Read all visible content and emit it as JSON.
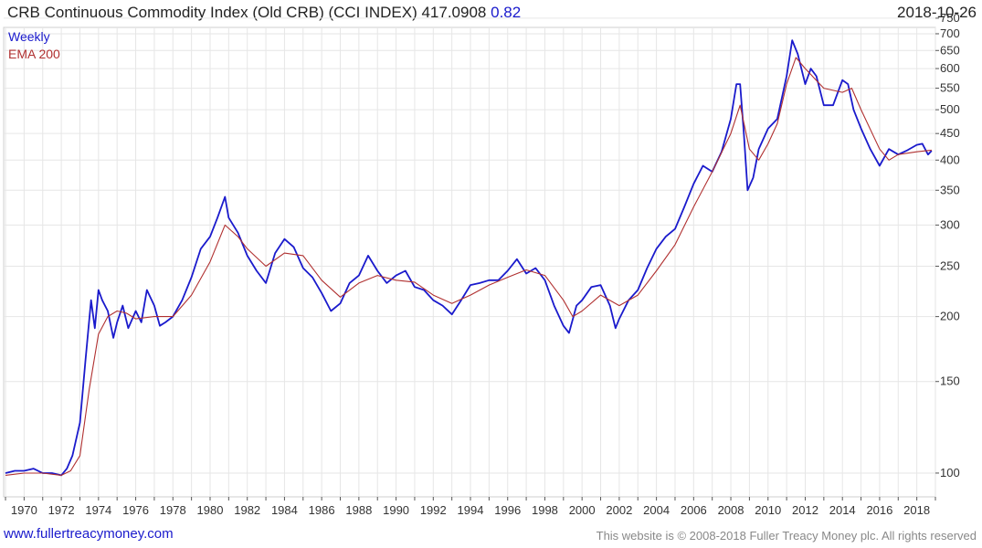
{
  "header": {
    "title": "CRB Continuous Commodity Index (Old CRB) (CCI INDEX) 417.0908",
    "change": "0.82",
    "date": "2018-10-26"
  },
  "footer": {
    "site": "www.fullertreacymoney.com",
    "copyright": "This website is © 2008-2018 Fuller Treacy Money plc. All rights reserved"
  },
  "colors": {
    "weekly": "#1a1acc",
    "ema": "#b03030",
    "grid": "#e6e6e6"
  },
  "chart_data": {
    "type": "line",
    "title": "CRB Continuous Commodity Index (Old CRB) (CCI INDEX)",
    "y_scale": "log",
    "ylim": [
      90,
      720
    ],
    "xlim": [
      1968.9,
      2019.0
    ],
    "y_ticks": [
      100,
      150,
      200,
      250,
      300,
      350,
      400,
      450,
      500,
      550,
      600,
      650,
      700,
      750
    ],
    "x_ticks": [
      1970,
      1972,
      1974,
      1976,
      1978,
      1980,
      1982,
      1984,
      1986,
      1988,
      1990,
      1992,
      1994,
      1996,
      1998,
      2000,
      2002,
      2004,
      2006,
      2008,
      2010,
      2012,
      2014,
      2016,
      2018
    ],
    "legend": [
      "Weekly",
      "EMA 200"
    ],
    "series": [
      {
        "name": "Weekly",
        "x": [
          1969.0,
          1969.5,
          1970.0,
          1970.5,
          1971.0,
          1971.5,
          1972.0,
          1972.3,
          1972.6,
          1973.0,
          1973.3,
          1973.6,
          1973.8,
          1974.0,
          1974.2,
          1974.5,
          1974.8,
          1975.0,
          1975.3,
          1975.6,
          1976.0,
          1976.3,
          1976.6,
          1977.0,
          1977.3,
          1977.6,
          1978.0,
          1978.5,
          1979.0,
          1979.5,
          1980.0,
          1980.4,
          1980.8,
          1981.0,
          1981.5,
          1982.0,
          1982.5,
          1983.0,
          1983.5,
          1984.0,
          1984.5,
          1985.0,
          1985.5,
          1986.0,
          1986.5,
          1987.0,
          1987.5,
          1988.0,
          1988.5,
          1989.0,
          1989.5,
          1990.0,
          1990.5,
          1991.0,
          1991.5,
          1992.0,
          1992.5,
          1993.0,
          1993.5,
          1994.0,
          1994.5,
          1995.0,
          1995.5,
          1996.0,
          1996.5,
          1997.0,
          1997.5,
          1998.0,
          1998.5,
          1999.0,
          1999.3,
          1999.7,
          2000.0,
          2000.5,
          2001.0,
          2001.5,
          2001.8,
          2002.0,
          2002.5,
          2003.0,
          2003.5,
          2004.0,
          2004.5,
          2005.0,
          2005.5,
          2006.0,
          2006.5,
          2007.0,
          2007.5,
          2008.0,
          2008.3,
          2008.5,
          2008.7,
          2008.9,
          2009.2,
          2009.5,
          2010.0,
          2010.5,
          2011.0,
          2011.3,
          2011.6,
          2012.0,
          2012.3,
          2012.6,
          2013.0,
          2013.5,
          2014.0,
          2014.3,
          2014.6,
          2015.0,
          2015.5,
          2016.0,
          2016.5,
          2017.0,
          2017.5,
          2018.0,
          2018.3,
          2018.6,
          2018.8
        ],
        "values": [
          100,
          101,
          101,
          102,
          100,
          100,
          99,
          102,
          108,
          125,
          165,
          215,
          190,
          225,
          215,
          205,
          182,
          195,
          210,
          190,
          205,
          195,
          225,
          210,
          192,
          195,
          200,
          215,
          238,
          270,
          285,
          310,
          340,
          310,
          290,
          262,
          245,
          232,
          265,
          282,
          272,
          248,
          238,
          222,
          205,
          212,
          232,
          240,
          262,
          245,
          232,
          240,
          245,
          228,
          225,
          215,
          210,
          202,
          215,
          230,
          232,
          235,
          235,
          245,
          258,
          242,
          248,
          235,
          210,
          192,
          186,
          210,
          215,
          228,
          230,
          210,
          190,
          198,
          215,
          225,
          248,
          270,
          285,
          295,
          325,
          360,
          390,
          380,
          415,
          480,
          560,
          560,
          450,
          350,
          370,
          420,
          460,
          480,
          580,
          680,
          640,
          560,
          600,
          580,
          510,
          510,
          570,
          560,
          500,
          460,
          420,
          390,
          420,
          410,
          418,
          428,
          430,
          410,
          417
        ]
      },
      {
        "name": "EMA 200",
        "x": [
          1969.0,
          1970.0,
          1971.0,
          1972.0,
          1972.5,
          1973.0,
          1973.5,
          1974.0,
          1974.5,
          1975.0,
          1975.5,
          1976.0,
          1977.0,
          1978.0,
          1979.0,
          1980.0,
          1980.8,
          1981.5,
          1982.0,
          1983.0,
          1984.0,
          1985.0,
          1986.0,
          1987.0,
          1988.0,
          1989.0,
          1990.0,
          1991.0,
          1992.0,
          1993.0,
          1994.0,
          1995.0,
          1996.0,
          1997.0,
          1998.0,
          1999.0,
          1999.5,
          2000.0,
          2001.0,
          2002.0,
          2003.0,
          2004.0,
          2005.0,
          2006.0,
          2007.0,
          2008.0,
          2008.5,
          2009.0,
          2009.5,
          2010.0,
          2010.5,
          2011.0,
          2011.5,
          2012.0,
          2013.0,
          2014.0,
          2014.5,
          2015.0,
          2016.0,
          2016.5,
          2017.0,
          2018.0,
          2018.8
        ],
        "values": [
          99,
          100,
          100,
          99,
          101,
          108,
          145,
          185,
          200,
          205,
          203,
          198,
          200,
          200,
          220,
          255,
          300,
          285,
          270,
          250,
          265,
          262,
          235,
          218,
          232,
          240,
          235,
          233,
          220,
          212,
          220,
          230,
          238,
          246,
          240,
          215,
          200,
          205,
          220,
          210,
          220,
          245,
          275,
          325,
          380,
          450,
          510,
          420,
          400,
          430,
          470,
          560,
          630,
          600,
          550,
          540,
          550,
          500,
          420,
          400,
          410,
          415,
          418
        ]
      }
    ]
  }
}
